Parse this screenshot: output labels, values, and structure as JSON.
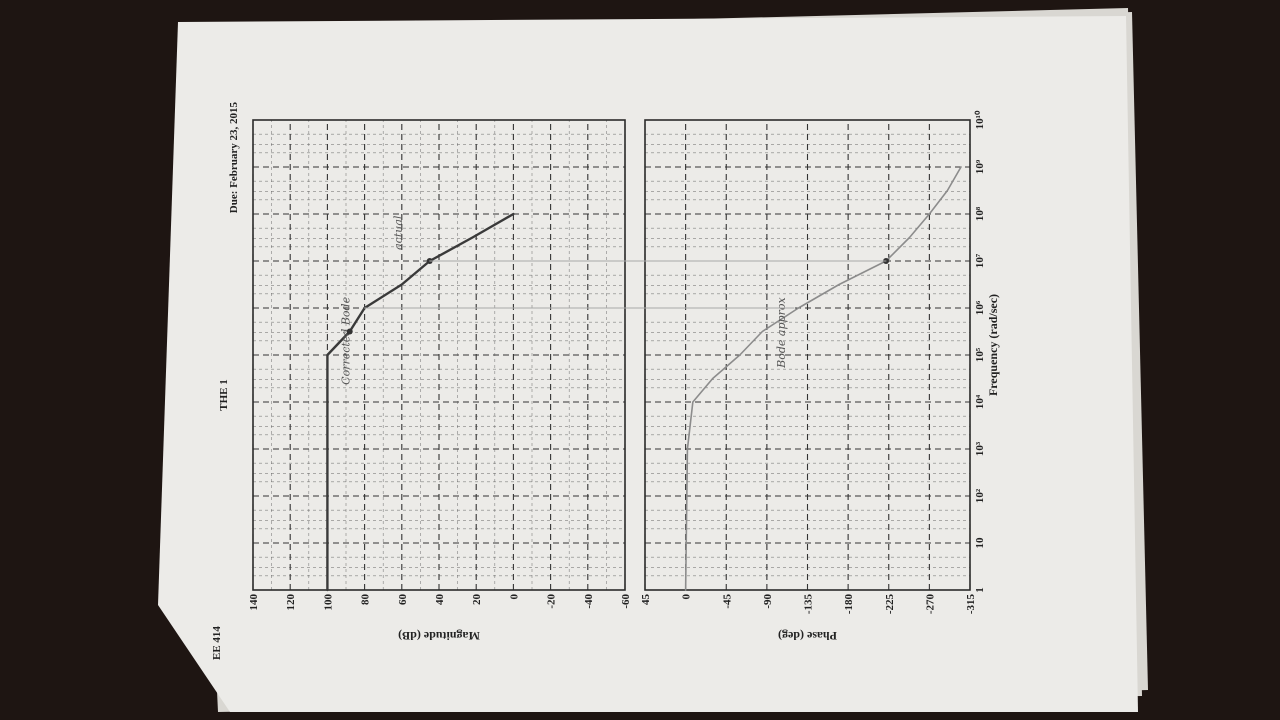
{
  "header": {
    "course": "EE 414",
    "assignment": "THE 1",
    "due": "Due: February 23, 2015"
  },
  "chart_data": [
    {
      "type": "line",
      "title": "",
      "xlabel": "Frequency (rad/sec)",
      "ylabel": "Magnitude (dB)",
      "xscale": "log",
      "x_ticks": [
        "1",
        "10",
        "10²",
        "10³",
        "10⁴",
        "10⁵",
        "10⁶",
        "10⁷",
        "10⁸",
        "10⁹",
        "10¹⁰"
      ],
      "y_ticks": [
        "140",
        "120",
        "100",
        "80",
        "60",
        "40",
        "20",
        "0",
        "-20",
        "-40",
        "-60"
      ],
      "ylim": [
        -60,
        140
      ],
      "xlim": [
        1,
        10000000000
      ],
      "grid": true,
      "series": [
        {
          "name": "",
          "style": "pencil-dark",
          "x": [
            1,
            100000,
            316228,
            1000000,
            3162278,
            10000000,
            31622777,
            100000000
          ],
          "y": [
            100,
            100,
            88,
            80,
            60,
            45,
            22,
            0
          ]
        }
      ],
      "annotations": [
        {
          "text": "Corrected Bode",
          "x": 200000,
          "y": 88
        },
        {
          "text": "actual",
          "x": 40000000,
          "y": 60
        }
      ]
    },
    {
      "type": "line",
      "title": "",
      "xlabel": "Frequency (rad/sec)",
      "ylabel": "Phase (deg)",
      "xscale": "log",
      "x_ticks": [
        "1",
        "10",
        "10²",
        "10³",
        "10⁴",
        "10⁵",
        "10⁶",
        "10⁷",
        "10⁸",
        "10⁹",
        "10¹⁰"
      ],
      "y_ticks": [
        "45",
        "0",
        "-45",
        "-90",
        "-135",
        "-180",
        "-225",
        "-270",
        "-315"
      ],
      "ylim": [
        -315,
        45
      ],
      "xlim": [
        1,
        10000000000
      ],
      "grid": true,
      "series": [
        {
          "name": "",
          "style": "pencil-light",
          "x": [
            1,
            1000,
            10000,
            31623,
            100000,
            316228,
            1000000,
            3162278,
            10000000,
            31622777,
            100000000,
            316227766,
            1000000000
          ],
          "y": [
            0,
            -2,
            -8,
            -30,
            -60,
            -85,
            -125,
            -170,
            -222,
            -248,
            -270,
            -290,
            -305
          ]
        }
      ],
      "annotations": [
        {
          "text": "Bode approx",
          "x": 300000,
          "y": -110
        }
      ]
    }
  ]
}
